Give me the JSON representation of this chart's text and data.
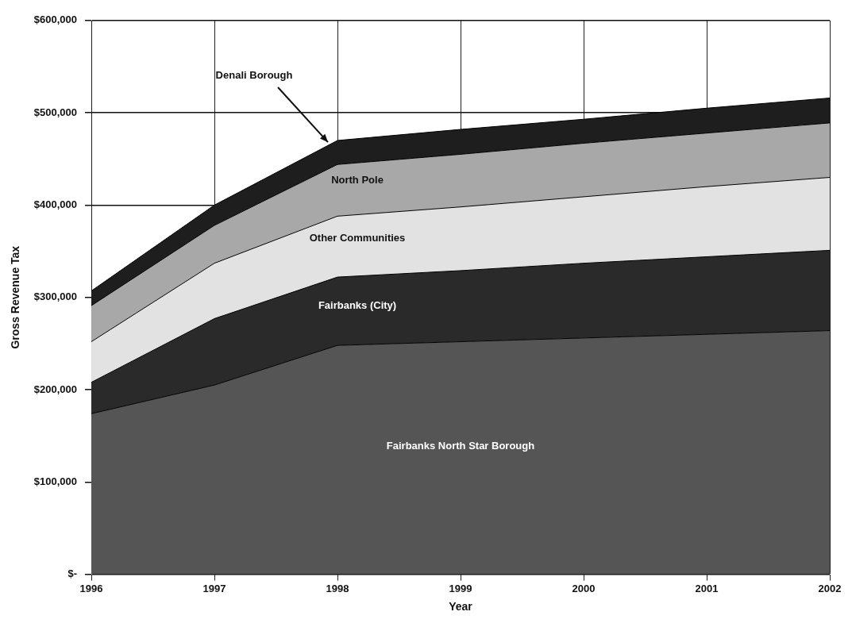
{
  "chart_data": {
    "type": "area",
    "stacked": true,
    "xlabel": "Year",
    "ylabel": "Gross Revenue Tax",
    "categories": [
      "1996",
      "1997",
      "1998",
      "1999",
      "2000",
      "2001",
      "2002"
    ],
    "series": [
      {
        "name": "Fairbanks North Star Borough",
        "color": "#555555",
        "values": [
          174000,
          205000,
          248000,
          252000,
          256000,
          260000,
          264000
        ]
      },
      {
        "name": "Fairbanks (City)",
        "color": "#2a2a2a",
        "values": [
          34000,
          72000,
          74000,
          77000,
          81000,
          84000,
          87000
        ]
      },
      {
        "name": "Other Communities",
        "color": "#e2e2e2",
        "values": [
          44000,
          60000,
          66000,
          69000,
          72000,
          76000,
          79000
        ]
      },
      {
        "name": "North Pole",
        "color": "#a8a8a8",
        "values": [
          39000,
          41000,
          56000,
          57000,
          58000,
          58000,
          59000
        ]
      },
      {
        "name": "Denali Borough",
        "color": "#1e1e1e",
        "values": [
          16000,
          22000,
          26000,
          27000,
          26000,
          27000,
          27000
        ]
      }
    ],
    "ylim": [
      0,
      600000
    ],
    "yticks": [
      {
        "value": 0,
        "label": "$-"
      },
      {
        "value": 100000,
        "label": "$100,000"
      },
      {
        "value": 200000,
        "label": "$200,000"
      },
      {
        "value": 300000,
        "label": "$300,000"
      },
      {
        "value": 400000,
        "label": "$400,000"
      },
      {
        "value": 500000,
        "label": "$500,000"
      },
      {
        "value": 600000,
        "label": "$600,000"
      }
    ],
    "grid": true,
    "legend": false
  }
}
